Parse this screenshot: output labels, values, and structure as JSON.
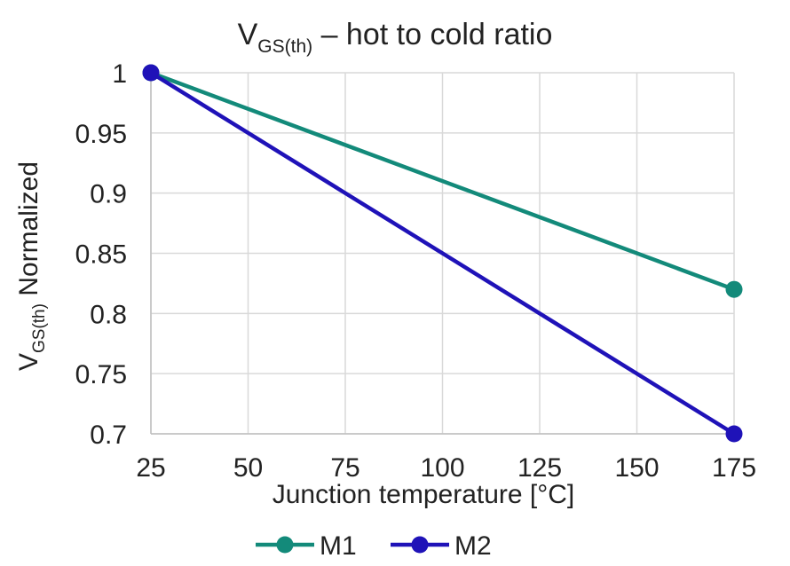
{
  "chart_data": {
    "type": "line",
    "title": {
      "main": "V",
      "sub": "GS(th)",
      "rest": " – hot to cold ratio"
    },
    "ylabel": {
      "main": "V",
      "sub": "GS(th)",
      "rest": " Normalized"
    },
    "xlabel": "Junction temperature [°C]",
    "x_ticks": [
      25,
      50,
      75,
      100,
      125,
      150,
      175
    ],
    "y_ticks": [
      "0.7",
      "0.75",
      "0.8",
      "0.85",
      "0.9",
      "0.95",
      "1"
    ],
    "xlim": [
      25,
      175
    ],
    "ylim": [
      0.7,
      1.0
    ],
    "grid": true,
    "legend_position": "bottom",
    "series": [
      {
        "name": "M1",
        "color": "#138a7a",
        "x": [
          25,
          175
        ],
        "y": [
          1.0,
          0.82
        ]
      },
      {
        "name": "M2",
        "color": "#1f12b8",
        "x": [
          25,
          175
        ],
        "y": [
          1.0,
          0.7
        ]
      }
    ]
  }
}
